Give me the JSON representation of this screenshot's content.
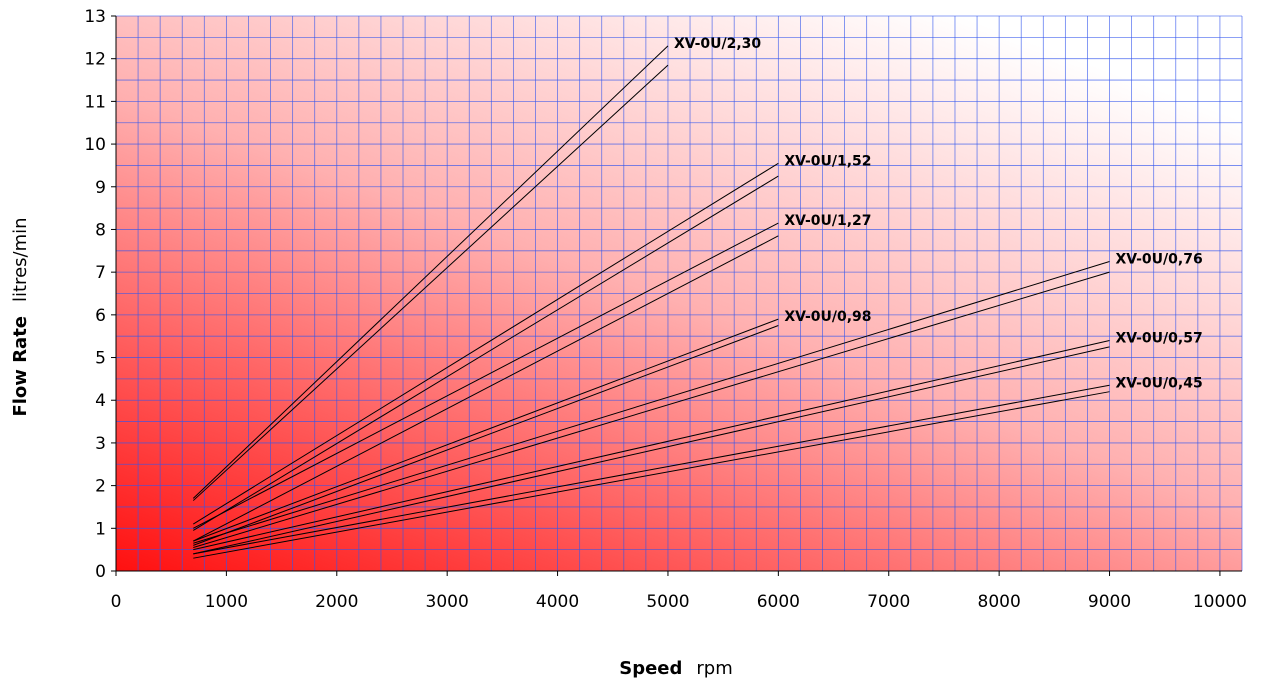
{
  "chart_data": {
    "type": "line",
    "xlabel": "Speed",
    "xunit": "rpm",
    "ylabel": "Flow Rate",
    "yunit": "litres/min",
    "xlim": [
      0,
      10200
    ],
    "ylim": [
      0,
      13
    ],
    "x_ticks": [
      "0",
      "1000",
      "2000",
      "3000",
      "4000",
      "5000",
      "6000",
      "7000",
      "8000",
      "9000",
      "10000"
    ],
    "y_ticks": [
      "0",
      "1",
      "2",
      "3",
      "4",
      "5",
      "6",
      "7",
      "8",
      "9",
      "10",
      "11",
      "12",
      "13"
    ],
    "grid": true,
    "background": "red-to-white gradient from bottom-left",
    "colors": {
      "grid": "#3355ee",
      "line": "#000000",
      "gradient_start": "#ff1010",
      "gradient_end": "#ffffff"
    },
    "series": [
      {
        "name": "XV-0U/2,30",
        "lines": [
          {
            "x": [
              700,
              5000
            ],
            "y": [
              1.7,
              12.3
            ]
          },
          {
            "x": [
              700,
              5000
            ],
            "y": [
              1.65,
              11.85
            ]
          }
        ]
      },
      {
        "name": "XV-0U/1,52",
        "lines": [
          {
            "x": [
              700,
              6000
            ],
            "y": [
              1.1,
              9.55
            ]
          },
          {
            "x": [
              700,
              6000
            ],
            "y": [
              0.95,
              9.25
            ]
          }
        ]
      },
      {
        "name": "XV-0U/1,27",
        "lines": [
          {
            "x": [
              700,
              6000
            ],
            "y": [
              1.0,
              8.15
            ]
          },
          {
            "x": [
              700,
              6000
            ],
            "y": [
              0.7,
              7.85
            ]
          }
        ]
      },
      {
        "name": "XV-0U/0,98",
        "lines": [
          {
            "x": [
              700,
              6000
            ],
            "y": [
              0.7,
              5.9
            ]
          },
          {
            "x": [
              700,
              6000
            ],
            "y": [
              0.6,
              5.75
            ]
          }
        ]
      },
      {
        "name": "XV-0U/0,76",
        "lines": [
          {
            "x": [
              700,
              9000
            ],
            "y": [
              0.65,
              7.25
            ]
          },
          {
            "x": [
              700,
              9000
            ],
            "y": [
              0.55,
              7.0
            ]
          }
        ]
      },
      {
        "name": "XV-0U/0,57",
        "lines": [
          {
            "x": [
              700,
              9000
            ],
            "y": [
              0.5,
              5.4
            ]
          },
          {
            "x": [
              700,
              9000
            ],
            "y": [
              0.4,
              5.25
            ]
          }
        ]
      },
      {
        "name": "XV-0U/0,45",
        "lines": [
          {
            "x": [
              700,
              9000
            ],
            "y": [
              0.4,
              4.35
            ]
          },
          {
            "x": [
              700,
              9000
            ],
            "y": [
              0.3,
              4.2
            ]
          }
        ]
      }
    ]
  }
}
